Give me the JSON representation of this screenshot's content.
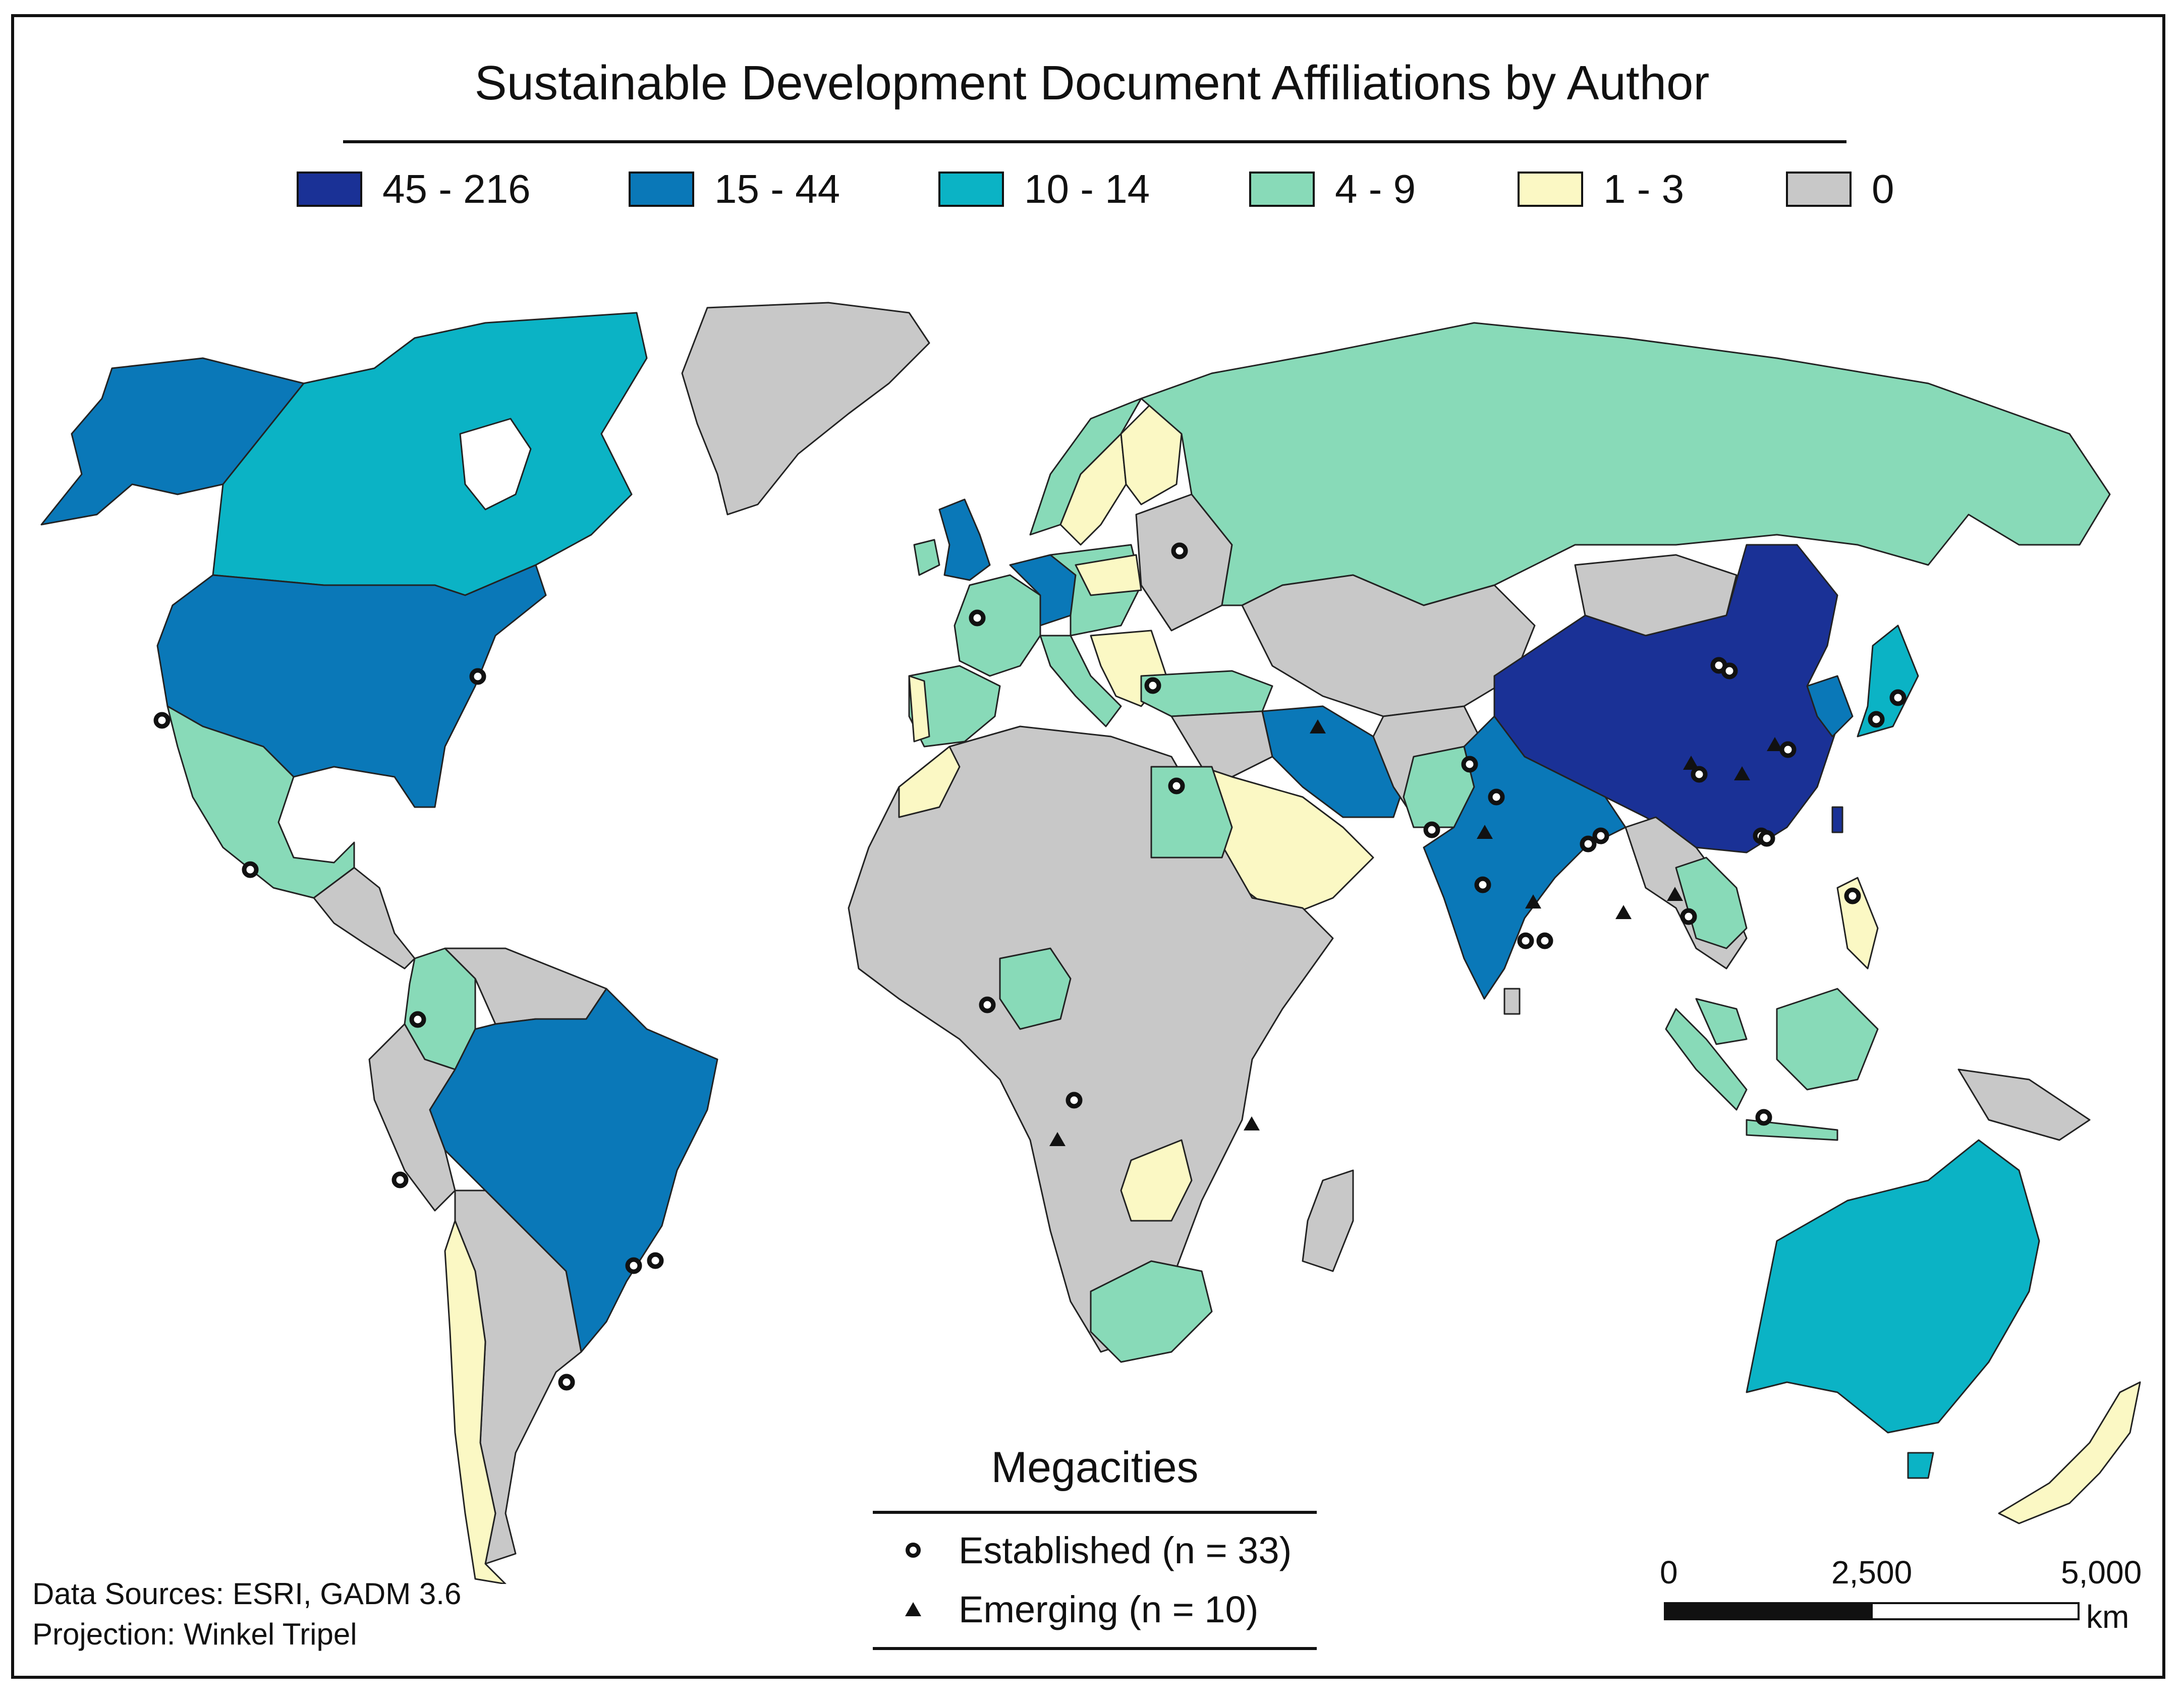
{
  "title": "Sustainable Development Document Affiliations by Author",
  "legend": [
    {
      "label": "45 - 216",
      "color": "#1a3196"
    },
    {
      "label": "15 - 44",
      "color": "#0a78b8"
    },
    {
      "label": "10 - 14",
      "color": "#0bb3c5"
    },
    {
      "label": "4 - 9",
      "color": "#88dab8"
    },
    {
      "label": "1 - 3",
      "color": "#fbf8c4"
    },
    {
      "label": "0",
      "color": "#c8c8c8"
    }
  ],
  "megacities": {
    "title": "Megacities",
    "established_label": "Established (n = 33)",
    "emerging_label": "Emerging (n = 10)",
    "established_icon": "ring-marker-icon",
    "emerging_icon": "triangle-marker-icon"
  },
  "sources": {
    "line1": "Data Sources: ESRI, GADM 3.6",
    "line2": "Projection: Winkel Tripel"
  },
  "scale": {
    "tick0": "0",
    "tick1": "2,500",
    "tick2": "5,000",
    "unit": "km"
  }
}
